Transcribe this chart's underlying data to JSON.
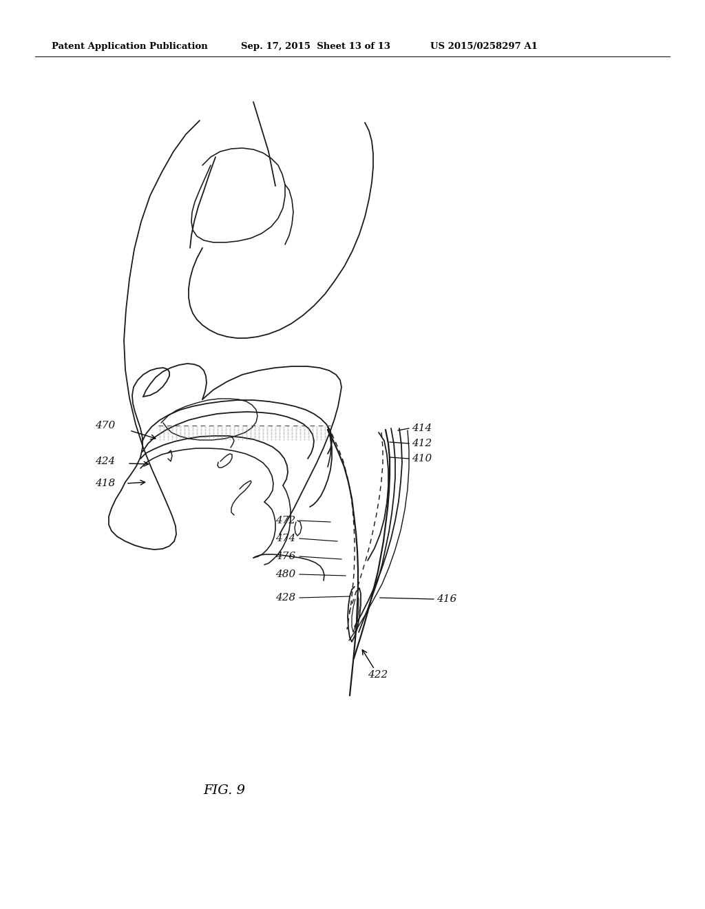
{
  "bg_color": "#ffffff",
  "header_left": "Patent Application Publication",
  "header_center": "Sep. 17, 2015  Sheet 13 of 13",
  "header_right": "US 2015/0258297 A1",
  "figure_label": "FIG. 9",
  "line_color": "#1a1a1a",
  "label_color": "#111111",
  "header_fontsize": 9.5,
  "label_fontsize": 11
}
